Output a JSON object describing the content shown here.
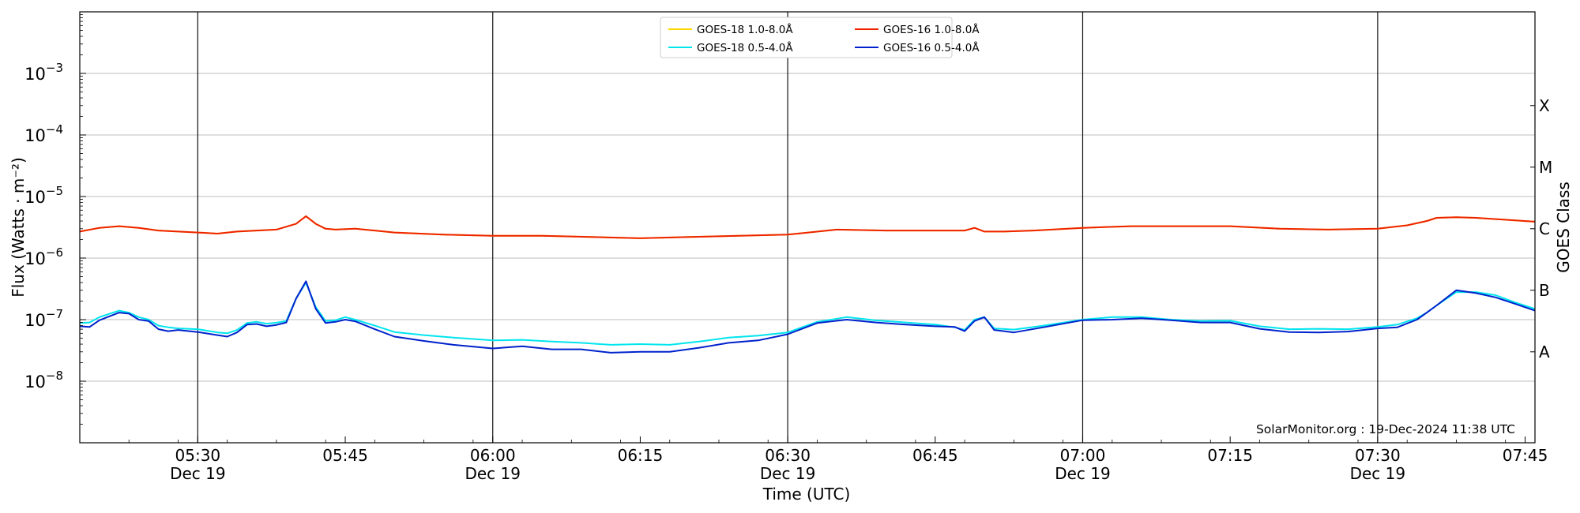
{
  "chart_data": {
    "type": "line",
    "xlabel": "Time (UTC)",
    "ylabel": "Flux (Watts · m⁻²)",
    "right_axis_label": "GOES Class",
    "y_scale": "log",
    "ylim": [
      1e-09,
      0.01
    ],
    "xlim": [
      "2024-12-19 05:18",
      "2024-12-19 07:46"
    ],
    "grid": "horizontal",
    "legend_position": "top-center",
    "watermark": "SolarMonitor.org : 19-Dec-2024 11:38 UTC",
    "y_ticks": [
      {
        "value": 1e-08,
        "base": "10",
        "exp": "−8"
      },
      {
        "value": 1e-07,
        "base": "10",
        "exp": "−7"
      },
      {
        "value": 1e-06,
        "base": "10",
        "exp": "−6"
      },
      {
        "value": 1e-05,
        "base": "10",
        "exp": "−5"
      },
      {
        "value": 0.0001,
        "base": "10",
        "exp": "−4"
      },
      {
        "value": 0.001,
        "base": "10",
        "exp": "−3"
      }
    ],
    "x_ticks": [
      {
        "time": "05:30",
        "date": "Dec 19"
      },
      {
        "time": "05:45",
        "date": ""
      },
      {
        "time": "06:00",
        "date": "Dec 19"
      },
      {
        "time": "06:15",
        "date": ""
      },
      {
        "time": "06:30",
        "date": "Dec 19"
      },
      {
        "time": "06:45",
        "date": ""
      },
      {
        "time": "07:00",
        "date": "Dec 19"
      },
      {
        "time": "07:15",
        "date": ""
      },
      {
        "time": "07:30",
        "date": "Dec 19"
      },
      {
        "time": "07:45",
        "date": ""
      }
    ],
    "vertical_lines": [
      "05:30",
      "06:00",
      "06:30",
      "07:00",
      "07:30"
    ],
    "goes_classes": [
      {
        "label": "A",
        "value": 3e-08
      },
      {
        "label": "B",
        "value": 3e-07
      },
      {
        "label": "C",
        "value": 3e-06
      },
      {
        "label": "M",
        "value": 3e-05
      },
      {
        "label": "X",
        "value": 0.0003
      }
    ],
    "legend": [
      {
        "name": "GOES-18 1.0-8.0Å",
        "color": "#ffd700"
      },
      {
        "name": "GOES-18 0.5-4.0Å",
        "color": "#00e5ee"
      },
      {
        "name": "GOES-16 1.0-8.0Å",
        "color": "#ee2200"
      },
      {
        "name": "GOES-16 0.5-4.0Å",
        "color": "#0022cc"
      }
    ],
    "series": [
      {
        "name": "GOES-18 1.0-8.0Å",
        "color": "#ffd700",
        "x": [
          "05:18",
          "05:20",
          "05:22",
          "05:24",
          "05:26",
          "05:28",
          "05:30",
          "05:32",
          "05:34",
          "05:36",
          "05:38",
          "05:40",
          "05:41",
          "05:42",
          "05:43",
          "05:44",
          "05:46",
          "05:48",
          "05:50",
          "05:55",
          "06:00",
          "06:05",
          "06:10",
          "06:15",
          "06:20",
          "06:25",
          "06:30",
          "06:35",
          "06:40",
          "06:45",
          "06:48",
          "06:49",
          "06:50",
          "06:52",
          "06:55",
          "07:00",
          "07:05",
          "07:10",
          "07:15",
          "07:20",
          "07:25",
          "07:30",
          "07:33",
          "07:35",
          "07:36",
          "07:38",
          "07:40",
          "07:42",
          "07:44",
          "07:46"
        ],
        "y": [
          2.7e-06,
          3.1e-06,
          3.3e-06,
          3.1e-06,
          2.8e-06,
          2.7e-06,
          2.6e-06,
          2.5e-06,
          2.7e-06,
          2.8e-06,
          2.9e-06,
          3.6e-06,
          4.8e-06,
          3.6e-06,
          3e-06,
          2.9e-06,
          3e-06,
          2.8e-06,
          2.6e-06,
          2.4e-06,
          2.3e-06,
          2.3e-06,
          2.2e-06,
          2.1e-06,
          2.2e-06,
          2.3e-06,
          2.4e-06,
          2.9e-06,
          2.8e-06,
          2.8e-06,
          2.8e-06,
          3.1e-06,
          2.7e-06,
          2.7e-06,
          2.8e-06,
          3.1e-06,
          3.3e-06,
          3.3e-06,
          3.3e-06,
          3e-06,
          2.9e-06,
          3e-06,
          3.4e-06,
          4e-06,
          4.5e-06,
          4.6e-06,
          4.5e-06,
          4.3e-06,
          4.1e-06,
          3.9e-06
        ]
      },
      {
        "name": "GOES-16 1.0-8.0Å",
        "color": "#ee2200",
        "x": [
          "05:18",
          "05:20",
          "05:22",
          "05:24",
          "05:26",
          "05:28",
          "05:30",
          "05:32",
          "05:34",
          "05:36",
          "05:38",
          "05:40",
          "05:41",
          "05:42",
          "05:43",
          "05:44",
          "05:46",
          "05:48",
          "05:50",
          "05:55",
          "06:00",
          "06:05",
          "06:10",
          "06:15",
          "06:20",
          "06:25",
          "06:30",
          "06:35",
          "06:40",
          "06:45",
          "06:48",
          "06:49",
          "06:50",
          "06:52",
          "06:55",
          "07:00",
          "07:05",
          "07:10",
          "07:15",
          "07:20",
          "07:25",
          "07:30",
          "07:33",
          "07:35",
          "07:36",
          "07:38",
          "07:40",
          "07:42",
          "07:44",
          "07:46"
        ],
        "y": [
          2.7e-06,
          3.1e-06,
          3.3e-06,
          3.1e-06,
          2.8e-06,
          2.7e-06,
          2.6e-06,
          2.5e-06,
          2.7e-06,
          2.8e-06,
          2.9e-06,
          3.6e-06,
          4.8e-06,
          3.6e-06,
          3e-06,
          2.9e-06,
          3e-06,
          2.8e-06,
          2.6e-06,
          2.4e-06,
          2.3e-06,
          2.3e-06,
          2.2e-06,
          2.1e-06,
          2.2e-06,
          2.3e-06,
          2.4e-06,
          2.9e-06,
          2.8e-06,
          2.8e-06,
          2.8e-06,
          3.1e-06,
          2.7e-06,
          2.7e-06,
          2.8e-06,
          3.1e-06,
          3.3e-06,
          3.3e-06,
          3.3e-06,
          3e-06,
          2.9e-06,
          3e-06,
          3.4e-06,
          4e-06,
          4.5e-06,
          4.6e-06,
          4.5e-06,
          4.3e-06,
          4.1e-06,
          3.9e-06
        ]
      },
      {
        "name": "GOES-18 0.5-4.0Å",
        "color": "#00e5ee",
        "x": [
          "05:18",
          "05:19",
          "05:20",
          "05:22",
          "05:23",
          "05:24",
          "05:25",
          "05:26",
          "05:27",
          "05:28",
          "05:30",
          "05:32",
          "05:33",
          "05:34",
          "05:35",
          "05:36",
          "05:37",
          "05:38",
          "05:39",
          "05:40",
          "05:41",
          "05:42",
          "05:43",
          "05:44",
          "05:45",
          "05:46",
          "05:48",
          "05:50",
          "05:53",
          "05:56",
          "06:00",
          "06:03",
          "06:06",
          "06:09",
          "06:12",
          "06:15",
          "06:18",
          "06:21",
          "06:24",
          "06:27",
          "06:30",
          "06:33",
          "06:36",
          "06:39",
          "06:42",
          "06:45",
          "06:47",
          "06:48",
          "06:49",
          "06:50",
          "06:51",
          "06:53",
          "06:56",
          "07:00",
          "07:03",
          "07:06",
          "07:09",
          "07:12",
          "07:15",
          "07:18",
          "07:21",
          "07:24",
          "07:27",
          "07:30",
          "07:32",
          "07:34",
          "07:35",
          "07:36",
          "07:38",
          "07:40",
          "07:42",
          "07:44",
          "07:46"
        ],
        "y": [
          8.8e-08,
          9e-08,
          1.1e-07,
          1.4e-07,
          1.3e-07,
          1.1e-07,
          1e-07,
          8e-08,
          7.5e-08,
          7.2e-08,
          7e-08,
          6.2e-08,
          6e-08,
          6.8e-08,
          8.8e-08,
          9.2e-08,
          8.6e-08,
          8.9e-08,
          9.5e-08,
          2.2e-07,
          4e-07,
          1.6e-07,
          9.5e-08,
          9.8e-08,
          1.1e-07,
          1e-07,
          8e-08,
          6.3e-08,
          5.6e-08,
          5.1e-08,
          4.6e-08,
          4.7e-08,
          4.4e-08,
          4.2e-08,
          3.9e-08,
          4e-08,
          3.9e-08,
          4.4e-08,
          5.1e-08,
          5.5e-08,
          6.2e-08,
          9.2e-08,
          1.1e-07,
          9.7e-08,
          9e-08,
          8.3e-08,
          7.5e-08,
          6.8e-08,
          1e-07,
          1.1e-07,
          7.2e-08,
          6.9e-08,
          8e-08,
          1e-07,
          1.1e-07,
          1.1e-07,
          1e-07,
          9.5e-08,
          9.6e-08,
          7.8e-08,
          7e-08,
          7.1e-08,
          7e-08,
          7.6e-08,
          8.3e-08,
          1.05e-07,
          1.3e-07,
          1.7e-07,
          2.8e-07,
          2.8e-07,
          2.5e-07,
          1.9e-07,
          1.5e-07
        ]
      },
      {
        "name": "GOES-16 0.5-4.0Å",
        "color": "#0022cc",
        "x": [
          "05:18",
          "05:19",
          "05:20",
          "05:22",
          "05:23",
          "05:24",
          "05:25",
          "05:26",
          "05:27",
          "05:28",
          "05:30",
          "05:32",
          "05:33",
          "05:34",
          "05:35",
          "05:36",
          "05:37",
          "05:38",
          "05:39",
          "05:40",
          "05:41",
          "05:42",
          "05:43",
          "05:44",
          "05:45",
          "05:46",
          "05:48",
          "05:50",
          "05:53",
          "05:56",
          "06:00",
          "06:03",
          "06:06",
          "06:09",
          "06:12",
          "06:15",
          "06:18",
          "06:21",
          "06:24",
          "06:27",
          "06:30",
          "06:33",
          "06:36",
          "06:39",
          "06:42",
          "06:45",
          "06:47",
          "06:48",
          "06:49",
          "06:50",
          "06:51",
          "06:53",
          "06:56",
          "07:00",
          "07:03",
          "07:06",
          "07:09",
          "07:12",
          "07:15",
          "07:18",
          "07:21",
          "07:24",
          "07:27",
          "07:30",
          "07:32",
          "07:34",
          "07:35",
          "07:36",
          "07:38",
          "07:40",
          "07:42",
          "07:44",
          "07:46"
        ],
        "y": [
          7.8e-08,
          7.6e-08,
          9.8e-08,
          1.3e-07,
          1.25e-07,
          1e-07,
          9.5e-08,
          7e-08,
          6.5e-08,
          6.8e-08,
          6.3e-08,
          5.6e-08,
          5.3e-08,
          6.2e-08,
          8.3e-08,
          8.5e-08,
          7.8e-08,
          8.2e-08,
          9e-08,
          2.2e-07,
          4.2e-07,
          1.5e-07,
          8.8e-08,
          9.2e-08,
          1e-07,
          9.4e-08,
          7e-08,
          5.3e-08,
          4.5e-08,
          3.9e-08,
          3.4e-08,
          3.7e-08,
          3.3e-08,
          3.3e-08,
          2.9e-08,
          3e-08,
          3e-08,
          3.5e-08,
          4.2e-08,
          4.6e-08,
          5.8e-08,
          8.8e-08,
          1e-07,
          9e-08,
          8.3e-08,
          7.8e-08,
          7.6e-08,
          6.5e-08,
          9.5e-08,
          1.1e-07,
          6.8e-08,
          6.2e-08,
          7.5e-08,
          9.8e-08,
          1e-07,
          1.05e-07,
          9.8e-08,
          9e-08,
          9e-08,
          7.1e-08,
          6.3e-08,
          6.2e-08,
          6.4e-08,
          7.2e-08,
          7.5e-08,
          1e-07,
          1.3e-07,
          1.7e-07,
          3e-07,
          2.7e-07,
          2.3e-07,
          1.8e-07,
          1.4e-07
        ]
      }
    ]
  }
}
